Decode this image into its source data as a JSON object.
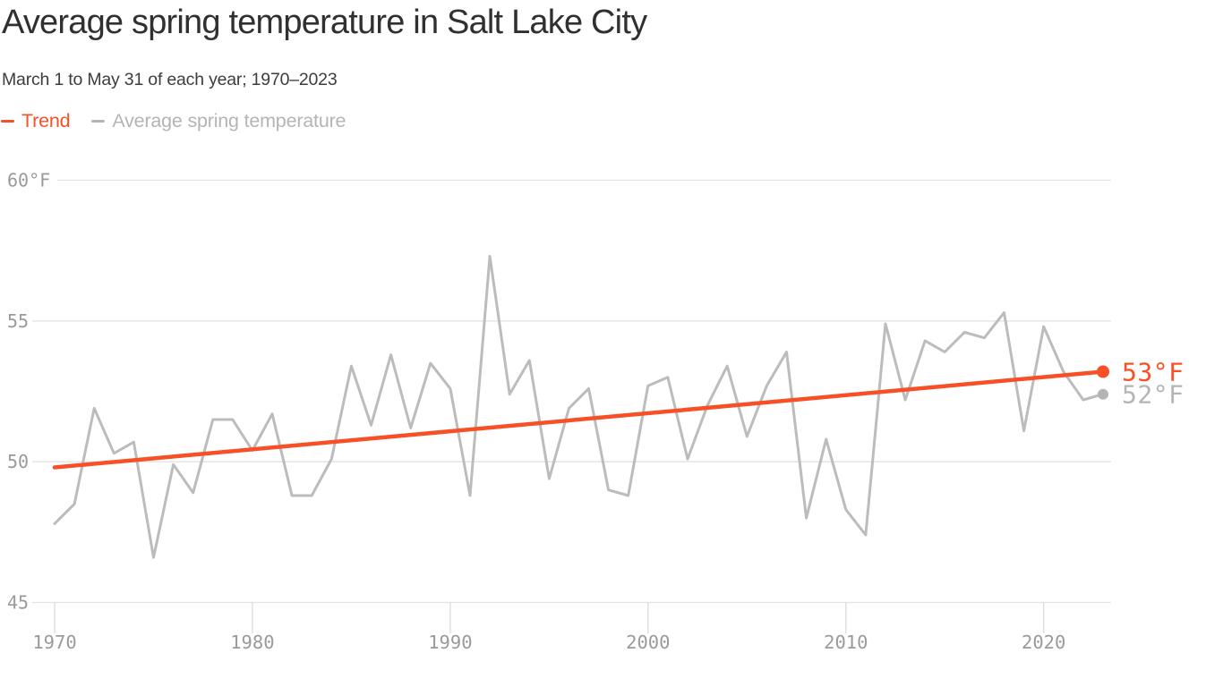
{
  "chart_data": {
    "type": "line",
    "title": "Average spring temperature in Salt Lake City",
    "subtitle": "March 1 to May 31 of each year; 1970–2023",
    "legend_position": "top-left",
    "grid": "horizontal",
    "xlim": [
      1970,
      2023
    ],
    "ylim": [
      45,
      60
    ],
    "y_unit": "°F",
    "legend": [
      {
        "label": "Trend",
        "color": "#f85026"
      },
      {
        "label": "Average spring temperature",
        "color": "#b4b4b4"
      }
    ],
    "x": [
      1970,
      1971,
      1972,
      1973,
      1974,
      1975,
      1976,
      1977,
      1978,
      1979,
      1980,
      1981,
      1982,
      1983,
      1984,
      1985,
      1986,
      1987,
      1988,
      1989,
      1990,
      1991,
      1992,
      1993,
      1994,
      1995,
      1996,
      1997,
      1998,
      1999,
      2000,
      2001,
      2002,
      2003,
      2004,
      2005,
      2006,
      2007,
      2008,
      2009,
      2010,
      2011,
      2012,
      2013,
      2014,
      2015,
      2016,
      2017,
      2018,
      2019,
      2020,
      2021,
      2022,
      2023
    ],
    "series": [
      {
        "name": "Average spring temperature",
        "color": "#bcbcbc",
        "values": [
          47.8,
          48.5,
          51.9,
          50.3,
          50.7,
          46.6,
          49.9,
          48.9,
          51.5,
          51.5,
          50.4,
          51.7,
          48.8,
          48.8,
          50.1,
          53.4,
          51.3,
          53.8,
          51.2,
          53.5,
          52.6,
          48.8,
          57.3,
          52.4,
          53.6,
          49.4,
          51.9,
          52.6,
          49.0,
          48.8,
          52.7,
          53.0,
          50.1,
          52.0,
          53.4,
          50.9,
          52.7,
          53.9,
          48.0,
          50.8,
          48.3,
          47.4,
          54.9,
          52.2,
          54.3,
          53.9,
          54.6,
          54.4,
          55.3,
          51.1,
          54.8,
          53.2,
          52.2,
          52.4
        ]
      },
      {
        "name": "Trend",
        "color": "#f85026",
        "trend": true,
        "start_value": 49.8,
        "end_value": 53.2
      }
    ],
    "y_ticks": [
      {
        "value": 60,
        "label": "60°F"
      },
      {
        "value": 55,
        "label": "55"
      },
      {
        "value": 50,
        "label": "50"
      },
      {
        "value": 45,
        "label": "45"
      }
    ],
    "x_ticks": [
      {
        "value": 1970,
        "label": "1970"
      },
      {
        "value": 1980,
        "label": "1980"
      },
      {
        "value": 1990,
        "label": "1990"
      },
      {
        "value": 2000,
        "label": "2000"
      },
      {
        "value": 2010,
        "label": "2010"
      },
      {
        "value": 2020,
        "label": "2020"
      }
    ],
    "end_labels": [
      {
        "text": "53°F",
        "value": 53.2,
        "series": "Trend",
        "color": "#f85026"
      },
      {
        "text": "52°F",
        "value": 52.4,
        "series": "Average spring temperature",
        "color": "#b4b4b4"
      }
    ],
    "colors": {
      "title": "#303030",
      "subtitle": "#3d3d3d",
      "axis_text": "#9a9a9a",
      "grid": "#e2e2e2",
      "tick": "#dcdcdc",
      "background": "#ffffff"
    }
  }
}
